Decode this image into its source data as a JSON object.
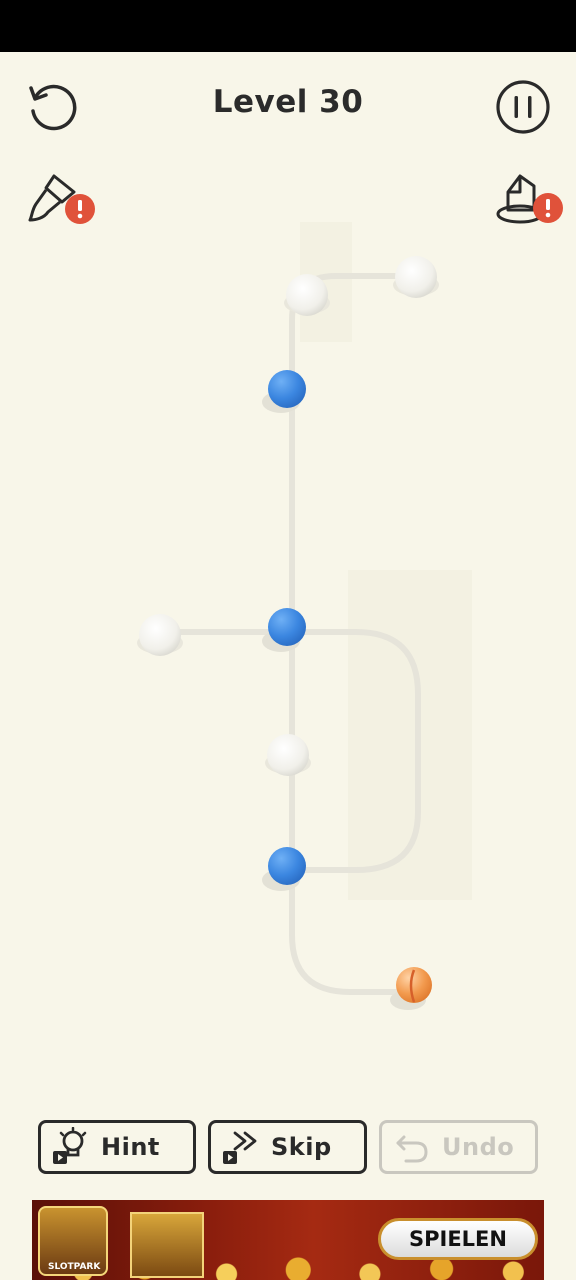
{
  "header": {
    "title": "Level 30"
  },
  "toolbar": {
    "hint_label": "Hint",
    "skip_label": "Skip",
    "undo_label": "Undo"
  },
  "ad": {
    "brand": "SLOTPARK",
    "cta_label": "SPIELEN"
  },
  "colors": {
    "background": "#f8f6e9",
    "blue_ball": "#3b86e0",
    "orange_ball": "#f29a4e",
    "badge": "#e0523a"
  }
}
